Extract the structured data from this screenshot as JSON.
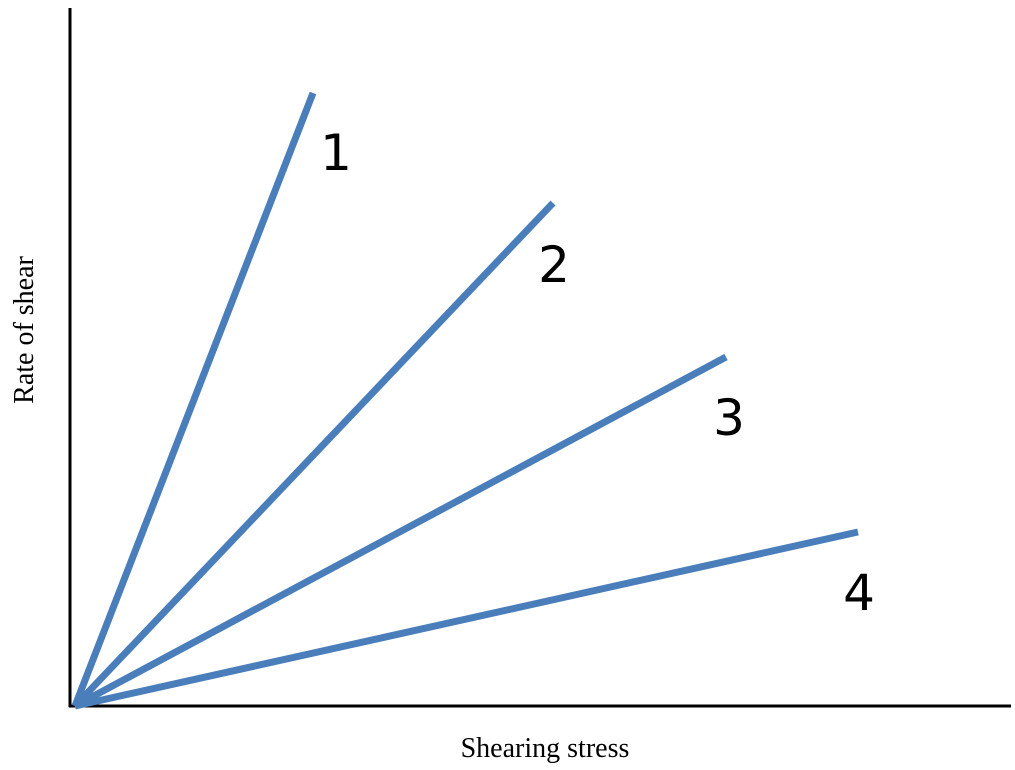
{
  "axes": {
    "x_label": "Shearing stress",
    "y_label": "Rate of shear"
  },
  "lines": [
    {
      "label": "1"
    },
    {
      "label": "2"
    },
    {
      "label": "3"
    },
    {
      "label": "4"
    }
  ]
}
